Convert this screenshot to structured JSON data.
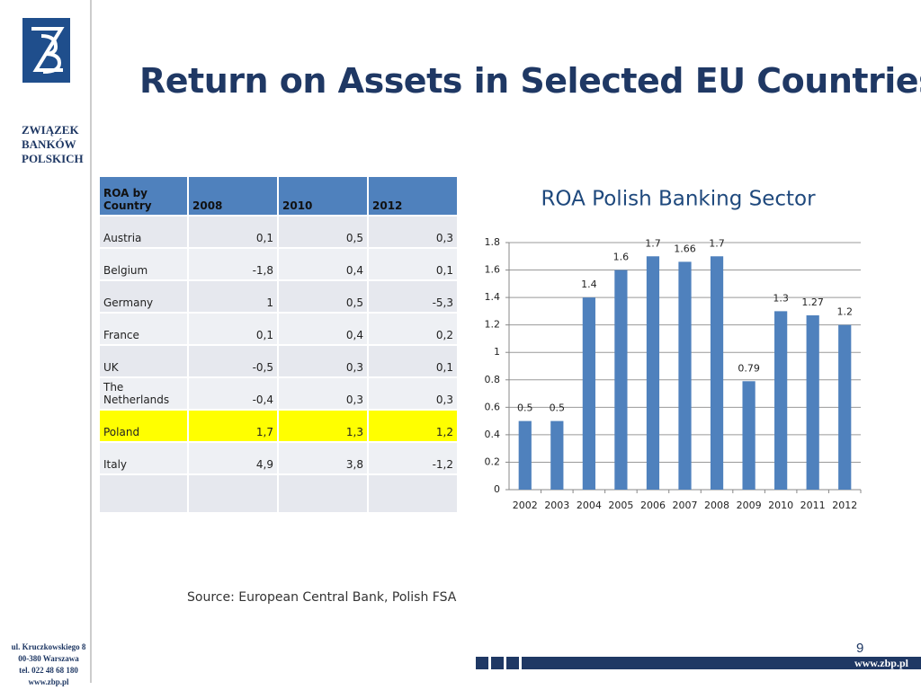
{
  "logo": {
    "name_lines": [
      "ZWIĄZEK",
      "BANKÓW",
      "POLSKICH"
    ]
  },
  "title": "Return on Assets in Selected EU Countries",
  "table": {
    "header": [
      "ROA by Country",
      "2008",
      "2010",
      "2012"
    ],
    "rows": [
      [
        "Austria",
        "0,1",
        "0,5",
        "0,3"
      ],
      [
        "Belgium",
        "-1,8",
        "0,4",
        "0,1"
      ],
      [
        "Germany",
        "1",
        "0,5",
        "-5,3"
      ],
      [
        "France",
        "0,1",
        "0,4",
        "0,2"
      ],
      [
        "UK",
        "-0,5",
        "0,3",
        "0,1"
      ],
      [
        "The Netherlands",
        "-0,4",
        "0,3",
        "0,3"
      ],
      [
        "Poland",
        "1,7",
        "1,3",
        "1,2"
      ],
      [
        "Italy",
        "4,9",
        "3,8",
        "-1,2"
      ]
    ],
    "highlight_row": 6
  },
  "source": "Source: European Central Bank, Polish FSA",
  "page_number": 9,
  "footer": {
    "address": [
      "ul. Kruczkowskiego 8",
      "00-380 Warszawa",
      "tel. 022 48 68 180",
      "www.zbp.pl"
    ],
    "banner": "www.zbp.pl"
  },
  "chart_data": {
    "type": "bar",
    "title": "ROA Polish Banking Sector",
    "categories": [
      "2002",
      "2003",
      "2004",
      "2005",
      "2006",
      "2007",
      "2008",
      "2009",
      "2010",
      "2011",
      "2012"
    ],
    "values": [
      0.5,
      0.5,
      1.4,
      1.6,
      1.7,
      1.66,
      1.7,
      0.79,
      1.3,
      1.27,
      1.2
    ],
    "color": "#4f81bd",
    "ylim": [
      0,
      1.8
    ],
    "yticks": [
      0,
      0.2,
      0.4,
      0.6,
      0.8,
      1,
      1.2,
      1.4,
      1.6,
      1.8
    ],
    "grid": true
  }
}
